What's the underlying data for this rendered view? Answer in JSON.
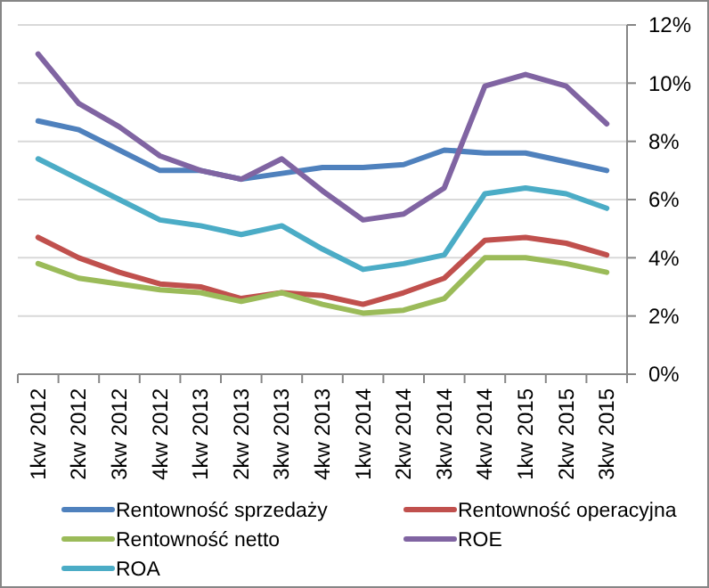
{
  "chart_data": {
    "type": "line",
    "categories": [
      "1kw 2012",
      "2kw 2012",
      "3kw 2012",
      "4kw 2012",
      "1kw 2013",
      "2kw 2013",
      "3kw 2013",
      "4kw 2013",
      "1kw 2014",
      "2kw 2014",
      "3kw 2014",
      "4kw 2014",
      "1kw 2015",
      "2kw 2015",
      "3kw 2015"
    ],
    "series": [
      {
        "name": "Rentowność sprzedaży",
        "color": "#4f81bd",
        "values": [
          8.7,
          8.4,
          7.7,
          7.0,
          7.0,
          6.7,
          6.9,
          7.1,
          7.1,
          7.2,
          7.7,
          7.6,
          7.6,
          7.3,
          7.0
        ]
      },
      {
        "name": "Rentowność operacyjna",
        "color": "#c0504d",
        "values": [
          4.7,
          4.0,
          3.5,
          3.1,
          3.0,
          2.6,
          2.8,
          2.7,
          2.4,
          2.8,
          3.3,
          4.6,
          4.7,
          4.5,
          4.1
        ]
      },
      {
        "name": "Rentowność netto",
        "color": "#9bbb59",
        "values": [
          3.8,
          3.3,
          3.1,
          2.9,
          2.8,
          2.5,
          2.8,
          2.4,
          2.1,
          2.2,
          2.6,
          4.0,
          4.0,
          3.8,
          3.5
        ]
      },
      {
        "name": "ROE",
        "color": "#8064a2",
        "values": [
          11.0,
          9.3,
          8.5,
          7.5,
          7.0,
          6.7,
          7.4,
          6.3,
          5.3,
          5.5,
          6.4,
          9.9,
          10.3,
          9.9,
          8.6
        ]
      },
      {
        "name": "ROA",
        "color": "#4bacc6",
        "values": [
          7.4,
          6.7,
          6.0,
          5.3,
          5.1,
          4.8,
          5.1,
          4.3,
          3.6,
          3.8,
          4.1,
          6.2,
          6.4,
          6.2,
          5.7
        ]
      }
    ],
    "ylim": [
      0,
      12
    ],
    "yticks": [
      {
        "value": 0,
        "label": "0%"
      },
      {
        "value": 2,
        "label": "2%"
      },
      {
        "value": 4,
        "label": "4%"
      },
      {
        "value": 6,
        "label": "6%"
      },
      {
        "value": 8,
        "label": "8%"
      },
      {
        "value": 10,
        "label": "10%"
      },
      {
        "value": 12,
        "label": "12%"
      }
    ],
    "grid": "y",
    "legend": "bottom",
    "line_style": "solid"
  }
}
